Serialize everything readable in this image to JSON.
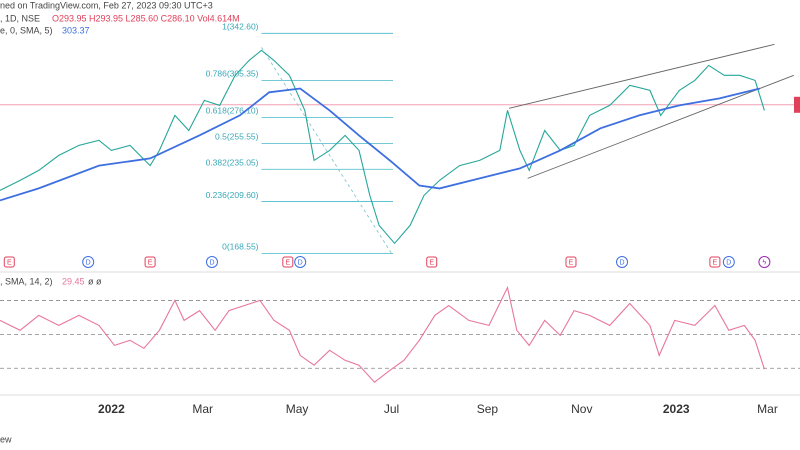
{
  "header": {
    "line1": "ned on TradingView.com, Feb 27, 2023 09:30 UTC+3",
    "symbol": ", 1D, NSE",
    "ohlc": "O293.95 H293.95 L285.60 C286.10 Vol4.614M",
    "ma_legend": "e, 0, SMA, 5)",
    "ma_value": "303.37",
    "rsi_legend": ", SMA, 14, 2)",
    "rsi_value": "29.45",
    "rsi_extra": "ø  ø",
    "footer": "ew"
  },
  "chart_data": [
    {
      "type": "line",
      "xlim": [
        -72,
        445
      ],
      "ylim": [
        157,
        369
      ],
      "price_line": 286.1,
      "series": [
        {
          "name": "Close",
          "color": "#26a69a",
          "x": [
            -72,
            -59,
            -47,
            -34,
            -21,
            -8,
            0,
            12,
            25,
            31,
            41,
            50,
            60,
            70,
            80,
            89,
            97,
            105,
            115,
            125,
            131,
            141,
            151,
            160,
            167,
            173,
            183,
            193,
            202,
            212,
            225,
            238,
            251,
            256,
            264,
            270,
            280,
            290,
            299,
            309,
            322,
            335,
            348,
            355,
            367,
            377,
            386,
            396,
            406,
            416,
            422
          ],
          "values": [
            218.4,
            226.3,
            234.2,
            246.1,
            254,
            258,
            250,
            254,
            238,
            250,
            277.7,
            265.8,
            289.6,
            285.6,
            309.4,
            321.2,
            329.2,
            321.2,
            309.4,
            281.7,
            242.1,
            250,
            261.9,
            250,
            214.4,
            190.7,
            176.5,
            190.7,
            214.4,
            226.3,
            238,
            242.1,
            250,
            281.7,
            250,
            234.2,
            265.8,
            250,
            254,
            277.7,
            285.6,
            301.5,
            297.5,
            277.7,
            297.5,
            305.4,
            317.3,
            309.4,
            309.4,
            305.4,
            281.7
          ]
        },
        {
          "name": "SMA",
          "color": "#3d6fe0",
          "x": [
            -72,
            -47,
            -8,
            25,
            57,
            83,
            102,
            122,
            141,
            160,
            180,
            199,
            212,
            238,
            264,
            290,
            316,
            341,
            367,
            393,
            419
          ],
          "values": [
            210.5,
            220,
            238,
            243.7,
            262,
            277.7,
            296,
            299,
            281.7,
            261.9,
            242,
            222.3,
            220,
            227.9,
            235.8,
            250,
            267.5,
            277.7,
            285.6,
            291.2,
            299
          ]
        }
      ],
      "fib": {
        "x": [
          97,
          182
        ],
        "levels": [
          {
            "value": 342.6,
            "label": "1(342.60)"
          },
          {
            "value": 305.35,
            "label": "0.786(305.35)"
          },
          {
            "value": 276.1,
            "label": "0.618(276.10)"
          },
          {
            "value": 255.55,
            "label": "0.5(255.55)"
          },
          {
            "value": 235.05,
            "label": "0.382(235.05)"
          },
          {
            "value": 209.6,
            "label": "0.236(209.60)"
          },
          {
            "value": 168.55,
            "label": "0(168.55)"
          }
        ]
      },
      "trendlines": [
        {
          "x": [
            257,
            428.5
          ],
          "y": [
            283.3,
            333.9
          ]
        },
        {
          "x": [
            269,
            441
          ],
          "y": [
            227.9,
            309.4
          ]
        },
        {
          "x": [
            97,
            181
          ],
          "y": [
            331.5,
            168.55
          ],
          "dashed": true
        }
      ],
      "events": [
        {
          "x": -66,
          "label": "E"
        },
        {
          "x": -15,
          "label": "D"
        },
        {
          "x": 25,
          "label": "E"
        },
        {
          "x": 65,
          "label": "D"
        },
        {
          "x": 114,
          "label": "E"
        },
        {
          "x": 122,
          "label": "D"
        },
        {
          "x": 207,
          "label": "E"
        },
        {
          "x": 297,
          "label": "E"
        },
        {
          "x": 330,
          "label": "D"
        },
        {
          "x": 390,
          "label": "E"
        },
        {
          "x": 399,
          "label": "D"
        },
        {
          "x": 422,
          "label": "ϟ"
        }
      ]
    },
    {
      "type": "line",
      "xlim": [
        -72,
        445
      ],
      "ylim": [
        16,
        85
      ],
      "levels": [
        70,
        50,
        30
      ],
      "xticks": [
        {
          "value": 0,
          "label": "2022"
        },
        {
          "value": 59,
          "label": "Mar"
        },
        {
          "value": 120,
          "label": "May"
        },
        {
          "value": 181,
          "label": "Jul"
        },
        {
          "value": 243,
          "label": "Sep"
        },
        {
          "value": 304,
          "label": "Nov"
        },
        {
          "value": 365,
          "label": "2023"
        },
        {
          "value": 424,
          "label": "Mar"
        }
      ],
      "series": [
        {
          "name": "RSI",
          "color": "#e8769f",
          "x": [
            -72,
            -59,
            -47,
            -34,
            -21,
            -8,
            2,
            12,
            21,
            31,
            41,
            47,
            57,
            67,
            76,
            86,
            96,
            105,
            115,
            122,
            131,
            141,
            151,
            160,
            170,
            180,
            189,
            199,
            209,
            218,
            231,
            244,
            256,
            262,
            270,
            280,
            290,
            299,
            309,
            322,
            335,
            348,
            354,
            364,
            377,
            390,
            399,
            409,
            416,
            422
          ],
          "values": [
            58.2,
            52.4,
            61.2,
            55.3,
            61.2,
            55.3,
            43.5,
            46.5,
            41.8,
            52.4,
            70,
            58.2,
            64,
            52.4,
            64,
            67,
            70,
            58.2,
            52.4,
            37.6,
            31.8,
            40.6,
            34.7,
            31.8,
            21.8,
            28.8,
            34.7,
            46.5,
            61.2,
            67,
            58.2,
            55.3,
            77.6,
            52.4,
            43.5,
            58.2,
            49.4,
            64,
            61.2,
            55.3,
            68.2,
            55.3,
            37.6,
            58.2,
            55.3,
            67,
            52.4,
            55.3,
            46.5,
            29.45
          ]
        }
      ]
    }
  ]
}
